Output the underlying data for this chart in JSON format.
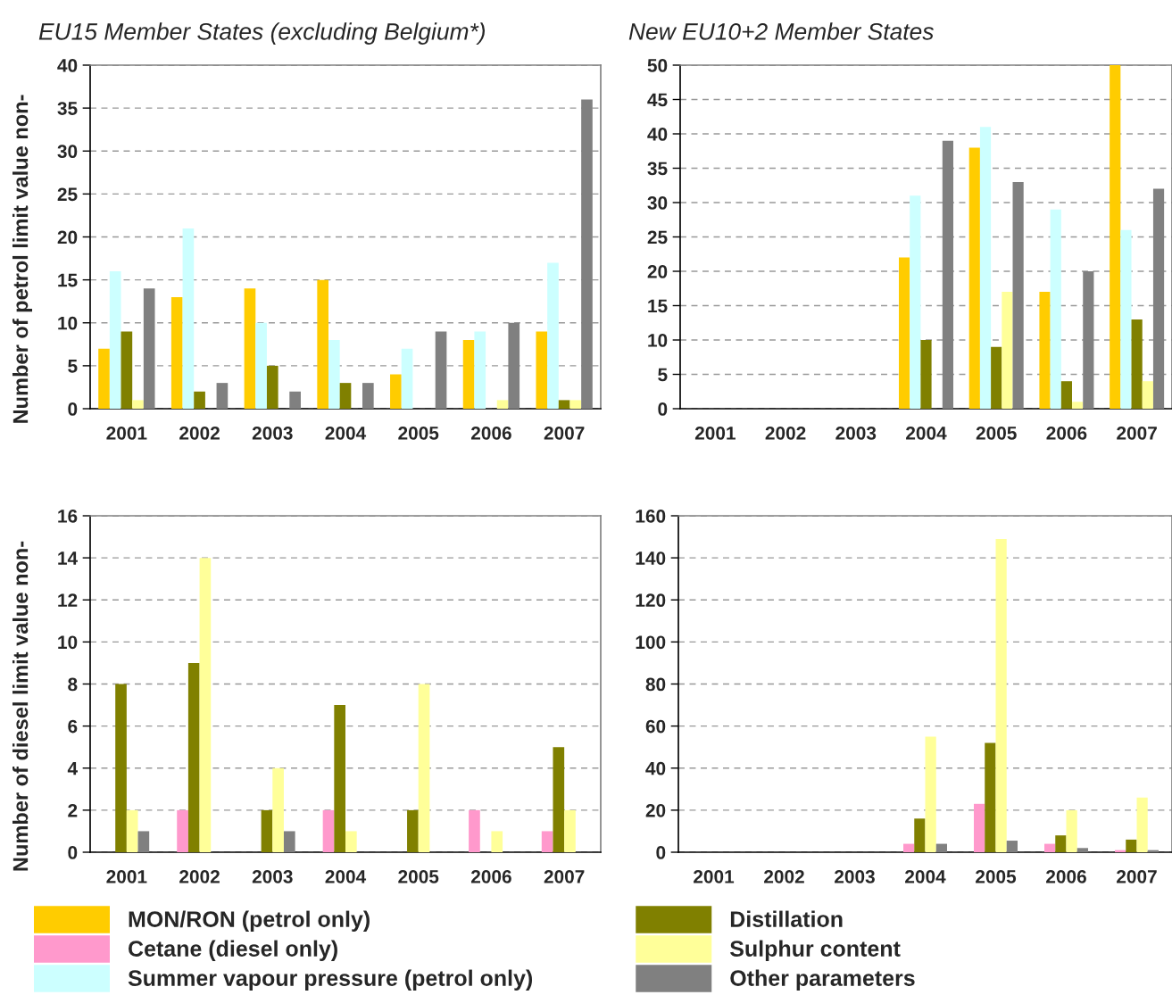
{
  "chart_data": [
    {
      "type": "bar",
      "title": "EU15 Member States (excluding Belgium*)",
      "ylabel": "Number of petrol limit value non-",
      "categories": [
        "2001",
        "2002",
        "2003",
        "2004",
        "2005",
        "2006",
        "2007"
      ],
      "ylim": [
        0,
        40
      ],
      "yticks": [
        0,
        5,
        10,
        15,
        20,
        25,
        30,
        35,
        40
      ],
      "grid": "y",
      "legend": "bottom",
      "series": [
        {
          "name": "MON/RON (petrol only)",
          "color": "#ffcc00",
          "values": [
            7,
            13,
            14,
            15,
            4,
            8,
            9
          ]
        },
        {
          "name": "Cetane (diesel only)",
          "color": "#ff99cc",
          "values": [
            null,
            null,
            null,
            null,
            null,
            null,
            null
          ]
        },
        {
          "name": "Summer vapour pressure (petrol only)",
          "color": "#ccffff",
          "values": [
            16,
            21,
            10,
            8,
            7,
            9,
            17
          ]
        },
        {
          "name": "Distillation",
          "color": "#808000",
          "values": [
            9,
            2,
            5,
            3,
            0,
            0,
            1
          ]
        },
        {
          "name": "Sulphur content",
          "color": "#ffff99",
          "values": [
            1,
            0,
            0,
            0,
            0,
            1,
            1
          ]
        },
        {
          "name": "Other parameters",
          "color": "#808080",
          "values": [
            14,
            3,
            2,
            3,
            9,
            10,
            36
          ]
        }
      ]
    },
    {
      "type": "bar",
      "title": "New EU10+2 Member States",
      "categories": [
        "2001",
        "2002",
        "2003",
        "2004",
        "2005",
        "2006",
        "2007"
      ],
      "ylim": [
        0,
        50
      ],
      "yticks": [
        0,
        5,
        10,
        15,
        20,
        25,
        30,
        35,
        40,
        45,
        50
      ],
      "grid": "y",
      "series": [
        {
          "color": "#ffcc00",
          "values": [
            null,
            null,
            null,
            22,
            38,
            17,
            50
          ]
        },
        {
          "color": "#ccffff",
          "values": [
            null,
            null,
            null,
            31,
            41,
            29,
            26
          ]
        },
        {
          "color": "#808000",
          "values": [
            null,
            null,
            null,
            10,
            9,
            4,
            13
          ]
        },
        {
          "color": "#ffff99",
          "values": [
            null,
            null,
            null,
            0,
            17,
            1,
            4
          ]
        },
        {
          "color": "#808080",
          "values": [
            null,
            null,
            null,
            39,
            33,
            20,
            32
          ]
        }
      ]
    },
    {
      "type": "bar",
      "ylabel": "Number of diesel limit value non-",
      "categories": [
        "2001",
        "2002",
        "2003",
        "2004",
        "2005",
        "2006",
        "2007"
      ],
      "ylim": [
        0,
        16
      ],
      "yticks": [
        0,
        2,
        4,
        6,
        8,
        10,
        12,
        14,
        16
      ],
      "grid": "y",
      "series": [
        {
          "color": "#ff99cc",
          "values": [
            0,
            2,
            0,
            2,
            0,
            2,
            1
          ]
        },
        {
          "color": "#808000",
          "values": [
            8,
            9,
            2,
            7,
            2,
            0,
            5
          ]
        },
        {
          "color": "#ffff99",
          "values": [
            2,
            14,
            4,
            1,
            8,
            1,
            2
          ]
        },
        {
          "color": "#808080",
          "values": [
            1,
            0,
            1,
            0,
            0,
            0,
            0
          ]
        }
      ]
    },
    {
      "type": "bar",
      "categories": [
        "2001",
        "2002",
        "2003",
        "2004",
        "2005",
        "2006",
        "2007"
      ],
      "ylim": [
        0,
        160
      ],
      "yticks": [
        0,
        20,
        40,
        60,
        80,
        100,
        120,
        140,
        160
      ],
      "grid": "y",
      "series": [
        {
          "color": "#ff99cc",
          "values": [
            null,
            null,
            null,
            4,
            23,
            4,
            1
          ]
        },
        {
          "color": "#808000",
          "values": [
            null,
            null,
            null,
            16,
            52,
            8,
            6
          ]
        },
        {
          "color": "#ffff99",
          "values": [
            null,
            null,
            null,
            55,
            149,
            20,
            26
          ]
        },
        {
          "color": "#808080",
          "values": [
            null,
            null,
            null,
            4,
            5.5,
            2,
            1
          ]
        }
      ]
    }
  ]
}
